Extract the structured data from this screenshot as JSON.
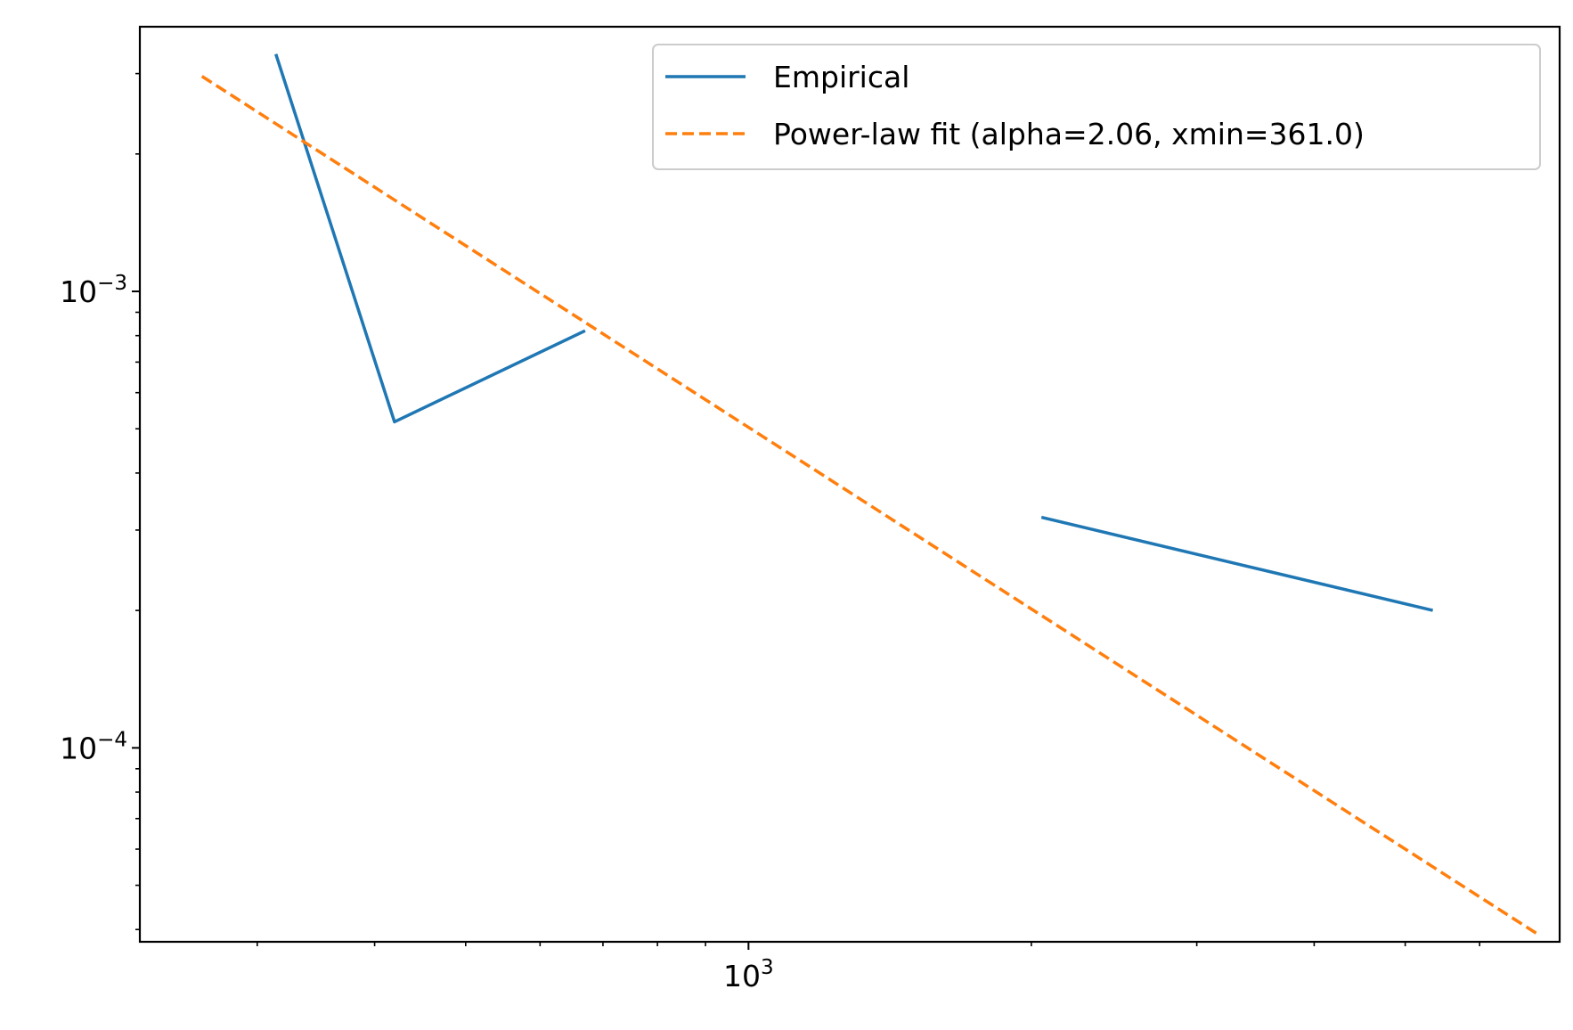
{
  "chart_data": {
    "type": "line",
    "title": "",
    "xlabel": "",
    "ylabel": "",
    "xscale": "log",
    "yscale": "log",
    "xlim": [
      225,
      7300
    ],
    "ylim": [
      3.76e-05,
      0.0038
    ],
    "x_major_ticks": [
      {
        "value": 1000,
        "base": "10",
        "exponent": "3"
      }
    ],
    "x_minor_ticks": [
      300,
      400,
      500,
      600,
      700,
      800,
      900,
      2000,
      3000,
      4000,
      5000,
      6000
    ],
    "y_major_ticks": [
      {
        "value": 0.001,
        "base": "10",
        "exponent": "−3"
      },
      {
        "value": 0.0001,
        "base": "10",
        "exponent": "−4"
      }
    ],
    "y_minor_ticks": [
      4e-05,
      5e-05,
      6e-05,
      7e-05,
      8e-05,
      9e-05,
      0.0002,
      0.0003,
      0.0004,
      0.0005,
      0.0006,
      0.0007,
      0.0008,
      0.0009,
      0.002,
      0.003
    ],
    "grid": false,
    "legend_position": "top-right",
    "series": [
      {
        "name": "Empirical",
        "color": "#1f77b4",
        "style": "solid",
        "segments": [
          {
            "x": [
              314,
              420,
              670
            ],
            "y": [
              0.00331,
              0.000518,
              0.00082
            ]
          },
          {
            "x": [
              2050,
              5350
            ],
            "y": [
              0.00032,
              0.0002
            ]
          }
        ]
      },
      {
        "name": "Power-law fit (alpha=2.06, xmin=361.0)",
        "color": "#ff7f0e",
        "style": "dashed",
        "segments": [
          {
            "x": [
              262,
              6900
            ],
            "y": [
              0.00296,
              3.92e-05
            ]
          }
        ]
      }
    ]
  }
}
